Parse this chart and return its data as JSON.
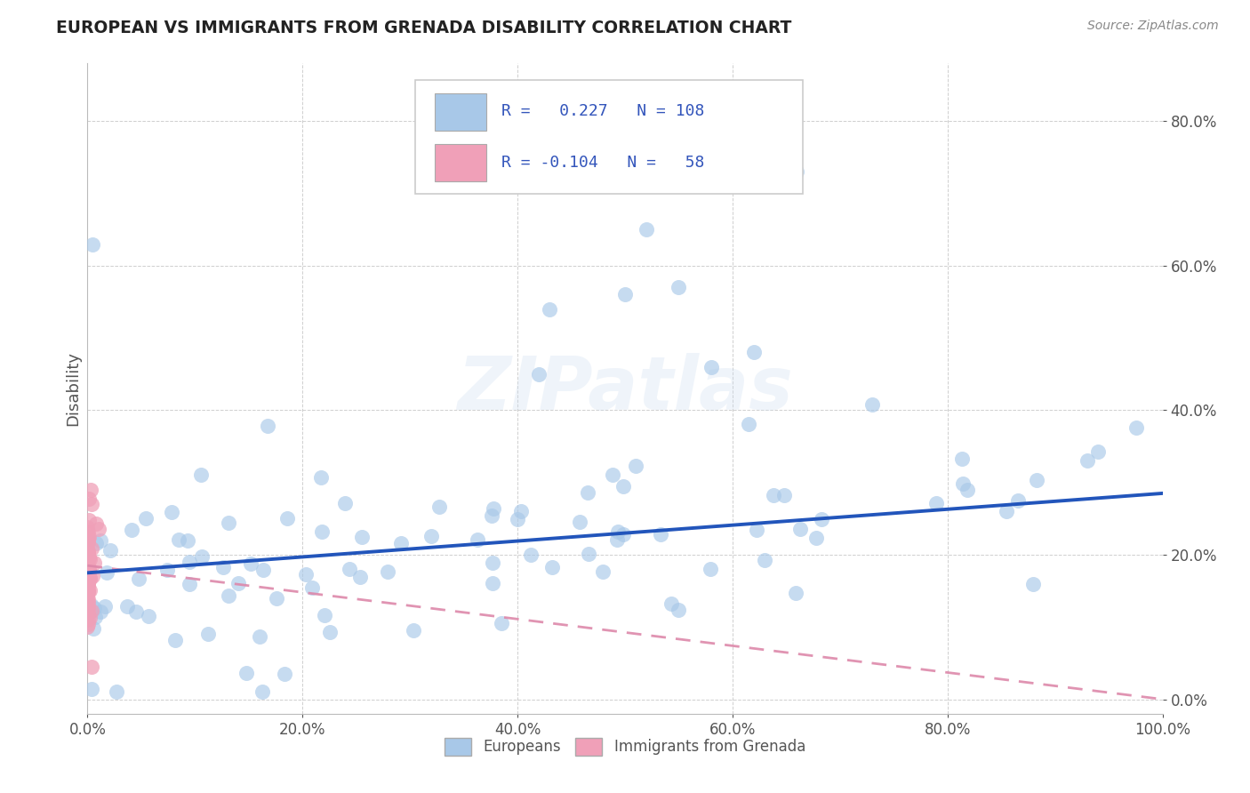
{
  "title": "EUROPEAN VS IMMIGRANTS FROM GRENADA DISABILITY CORRELATION CHART",
  "source_text": "Source: ZipAtlas.com",
  "ylabel": "Disability",
  "xlim": [
    0.0,
    1.0
  ],
  "ylim": [
    -0.02,
    0.88
  ],
  "xticks": [
    0.0,
    0.2,
    0.4,
    0.6,
    0.8,
    1.0
  ],
  "xtick_labels": [
    "0.0%",
    "20.0%",
    "40.0%",
    "60.0%",
    "80.0%",
    "100.0%"
  ],
  "yticks": [
    0.0,
    0.2,
    0.4,
    0.6,
    0.8
  ],
  "ytick_labels": [
    "0.0%",
    "20.0%",
    "40.0%",
    "60.0%",
    "80.0%"
  ],
  "european_color": "#a8c8e8",
  "grenada_color": "#f0a0b8",
  "european_R": 0.227,
  "european_N": 108,
  "grenada_R": -0.104,
  "grenada_N": 58,
  "trend_blue": "#2255bb",
  "trend_pink": "#dd88aa",
  "watermark": "ZIPatlas",
  "legend_label_european": "Europeans",
  "legend_label_grenada": "Immigrants from Grenada",
  "background_color": "#ffffff",
  "grid_color": "#bbbbbb",
  "title_color": "#222222",
  "axis_label_color": "#555555",
  "tick_color": "#555555",
  "source_color": "#888888",
  "eu_trend_y0": 0.175,
  "eu_trend_y1": 0.285,
  "gr_trend_y0": 0.185,
  "gr_trend_y1": 0.0
}
